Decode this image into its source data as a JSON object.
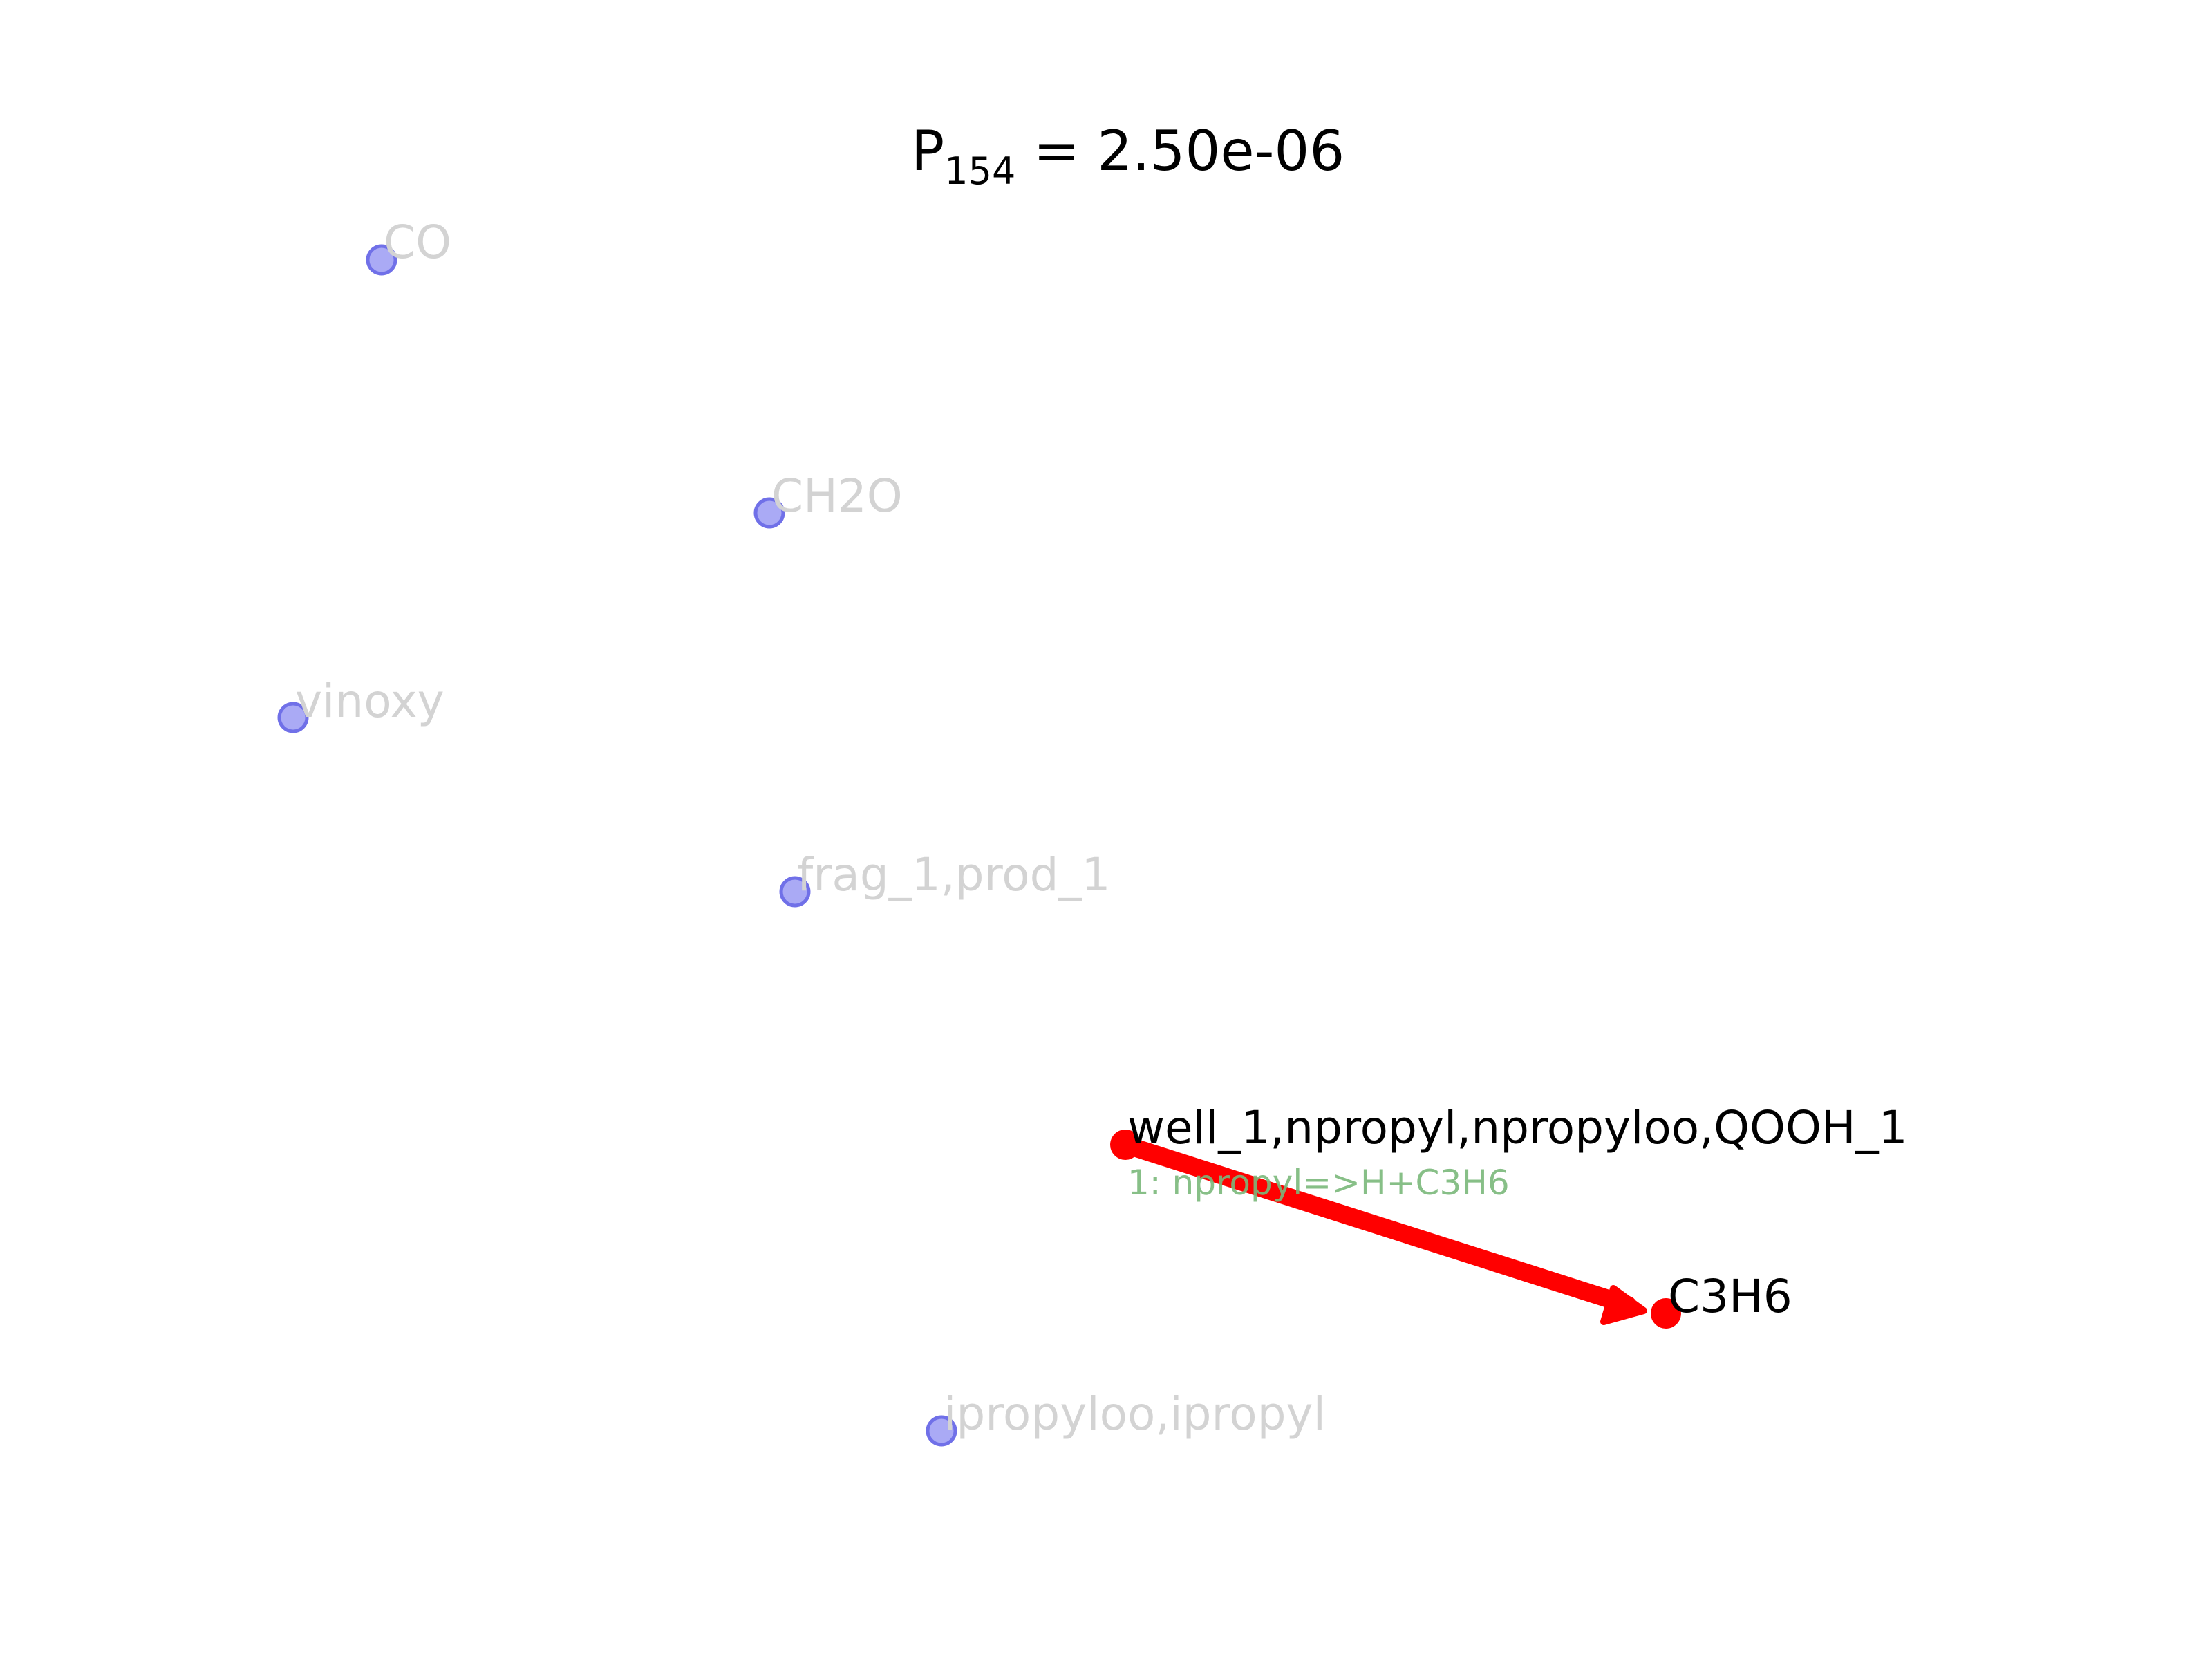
{
  "title": {
    "prefix": "P",
    "subscript": "154",
    "suffix": " = 2.50e-06"
  },
  "colors": {
    "inactive_node_fill": "#aaaaf5",
    "inactive_node_stroke": "#7070e8",
    "inactive_label": "#d3d3d3",
    "active_node": "#ff0000",
    "active_label": "#000000",
    "edge": "#ff0000",
    "edge_label": "#7ab87a"
  },
  "nodes": [
    {
      "id": "co",
      "label": "CO",
      "active": false
    },
    {
      "id": "ch2o",
      "label": "CH2O",
      "active": false
    },
    {
      "id": "vinoxy",
      "label": "vinoxy",
      "active": false
    },
    {
      "id": "frag",
      "label": "frag_1,prod_1",
      "active": false
    },
    {
      "id": "ipropyl",
      "label": "ipropyloo,ipropyl",
      "active": false
    },
    {
      "id": "well",
      "label": "well_1,npropyl,npropyloo,QOOH_1",
      "active": true
    },
    {
      "id": "c3h6",
      "label": "C3H6",
      "active": true
    }
  ],
  "edges": [
    {
      "from": "well",
      "to": "c3h6",
      "label": "1: npropyl=>H+C3H6"
    }
  ]
}
